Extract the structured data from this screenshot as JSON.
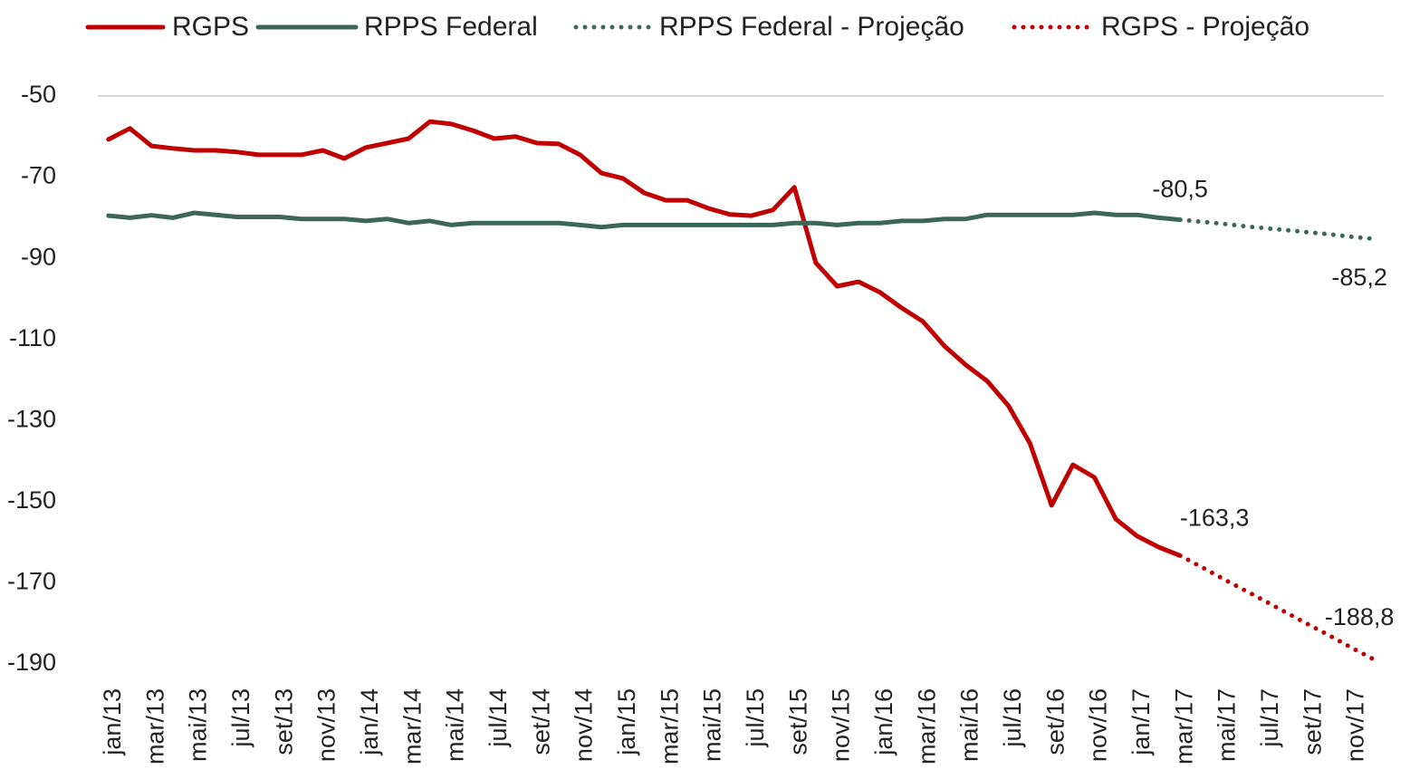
{
  "chart_data": {
    "type": "line",
    "categories": [
      "jan/13",
      null,
      "mar/13",
      null,
      "mai/13",
      null,
      "jul/13",
      null,
      "set/13",
      null,
      "nov/13",
      null,
      "jan/14",
      null,
      "mar/14",
      null,
      "mai/14",
      null,
      "jul/14",
      null,
      "set/14",
      null,
      "nov/14",
      null,
      "jan/15",
      null,
      "mar/15",
      null,
      "mai/15",
      null,
      "jul/15",
      null,
      "set/15",
      null,
      "nov/15",
      null,
      "jan/16",
      null,
      "mar/16",
      null,
      "mai/16",
      null,
      "jul/16",
      null,
      "set/16",
      null,
      "nov/16",
      null,
      "jan/17",
      null,
      "mar/17",
      null,
      "mai/17",
      null,
      "jul/17",
      null,
      "set/17",
      null,
      "nov/17",
      null
    ],
    "series": [
      {
        "name": "RGPS",
        "color": "#c00000",
        "style": "solid",
        "values": [
          -60.7,
          -58.0,
          -62.3,
          -62.9,
          -63.4,
          -63.4,
          -63.8,
          -64.5,
          -64.5,
          -64.5,
          -63.4,
          -65.4,
          -62.7,
          -61.6,
          -60.5,
          -56.3,
          -56.9,
          -58.5,
          -60.5,
          -60.0,
          -61.6,
          -61.8,
          -64.5,
          -69.0,
          -70.3,
          -73.9,
          -75.7,
          -75.7,
          -77.7,
          -79.2,
          -79.5,
          -78.1,
          -72.5,
          -91.1,
          -96.9,
          -95.8,
          -98.4,
          -102.2,
          -105.6,
          -111.6,
          -116.3,
          -120.3,
          -126.4,
          -135.7,
          -150.9,
          -140.9,
          -144.0,
          -154.3,
          -158.5,
          -161.2,
          -163.3,
          null,
          null,
          null,
          null,
          null,
          null,
          null,
          null,
          null
        ],
        "value_labels": [
          null,
          null,
          null,
          null,
          null,
          null,
          null,
          null,
          null,
          null,
          null,
          null,
          null,
          null,
          null,
          null,
          null,
          null,
          null,
          null,
          null,
          null,
          null,
          null,
          null,
          null,
          null,
          null,
          null,
          null,
          null,
          null,
          null,
          null,
          null,
          null,
          null,
          null,
          null,
          null,
          null,
          null,
          null,
          null,
          null,
          null,
          null,
          null,
          null,
          null,
          "-163,3",
          null,
          null,
          null,
          null,
          null,
          null,
          null,
          null,
          null
        ]
      },
      {
        "name": "RPPS Federal",
        "color": "#3b6659",
        "style": "solid",
        "values": [
          -79.5,
          -80.0,
          -79.4,
          -80.0,
          -78.8,
          -79.3,
          -79.8,
          -79.8,
          -79.8,
          -80.3,
          -80.3,
          -80.3,
          -80.8,
          -80.3,
          -81.3,
          -80.8,
          -81.8,
          -81.3,
          -81.3,
          -81.3,
          -81.3,
          -81.3,
          -81.8,
          -82.3,
          -81.8,
          -81.8,
          -81.8,
          -81.8,
          -81.8,
          -81.8,
          -81.8,
          -81.8,
          -81.3,
          -81.3,
          -81.8,
          -81.3,
          -81.3,
          -80.8,
          -80.8,
          -80.3,
          -80.3,
          -79.3,
          -79.3,
          -79.3,
          -79.3,
          -79.3,
          -78.8,
          -79.3,
          -79.3,
          -80.0,
          -80.5,
          null,
          null,
          null,
          null,
          null,
          null,
          null,
          null,
          null
        ],
        "value_labels": [
          null,
          null,
          null,
          null,
          null,
          null,
          null,
          null,
          null,
          null,
          null,
          null,
          null,
          null,
          null,
          null,
          null,
          null,
          null,
          null,
          null,
          null,
          null,
          null,
          null,
          null,
          null,
          null,
          null,
          null,
          null,
          null,
          null,
          null,
          null,
          null,
          null,
          null,
          null,
          null,
          null,
          null,
          null,
          null,
          null,
          null,
          null,
          null,
          null,
          null,
          "-80,5",
          null,
          null,
          null,
          null,
          null,
          null,
          null,
          null,
          null
        ]
      },
      {
        "name": "RPPS Federal - Projeção",
        "color": "#3b6659",
        "style": "dotted",
        "values": [
          null,
          null,
          null,
          null,
          null,
          null,
          null,
          null,
          null,
          null,
          null,
          null,
          null,
          null,
          null,
          null,
          null,
          null,
          null,
          null,
          null,
          null,
          null,
          null,
          null,
          null,
          null,
          null,
          null,
          null,
          null,
          null,
          null,
          null,
          null,
          null,
          null,
          null,
          null,
          null,
          null,
          null,
          null,
          null,
          null,
          null,
          null,
          null,
          null,
          null,
          -80.5,
          -81.0,
          -81.5,
          -82.1,
          -82.6,
          -83.1,
          -83.6,
          -84.1,
          -84.7,
          -85.2
        ],
        "value_labels": [
          null,
          null,
          null,
          null,
          null,
          null,
          null,
          null,
          null,
          null,
          null,
          null,
          null,
          null,
          null,
          null,
          null,
          null,
          null,
          null,
          null,
          null,
          null,
          null,
          null,
          null,
          null,
          null,
          null,
          null,
          null,
          null,
          null,
          null,
          null,
          null,
          null,
          null,
          null,
          null,
          null,
          null,
          null,
          null,
          null,
          null,
          null,
          null,
          null,
          null,
          null,
          null,
          null,
          null,
          null,
          null,
          null,
          null,
          null,
          "-85,2"
        ]
      },
      {
        "name": "RGPS - Projeção",
        "color": "#c00000",
        "style": "dotted",
        "values": [
          null,
          null,
          null,
          null,
          null,
          null,
          null,
          null,
          null,
          null,
          null,
          null,
          null,
          null,
          null,
          null,
          null,
          null,
          null,
          null,
          null,
          null,
          null,
          null,
          null,
          null,
          null,
          null,
          null,
          null,
          null,
          null,
          null,
          null,
          null,
          null,
          null,
          null,
          null,
          null,
          null,
          null,
          null,
          null,
          null,
          null,
          null,
          null,
          null,
          null,
          -163.3,
          -166.1,
          -169.0,
          -171.8,
          -174.6,
          -177.5,
          -180.3,
          -183.1,
          -186.0,
          -188.8
        ],
        "value_labels": [
          null,
          null,
          null,
          null,
          null,
          null,
          null,
          null,
          null,
          null,
          null,
          null,
          null,
          null,
          null,
          null,
          null,
          null,
          null,
          null,
          null,
          null,
          null,
          null,
          null,
          null,
          null,
          null,
          null,
          null,
          null,
          null,
          null,
          null,
          null,
          null,
          null,
          null,
          null,
          null,
          null,
          null,
          null,
          null,
          null,
          null,
          null,
          null,
          null,
          null,
          null,
          null,
          null,
          null,
          null,
          null,
          null,
          null,
          null,
          "-188,8"
        ]
      }
    ],
    "ylim": [
      -190,
      -50
    ],
    "yticks": [
      -50,
      -70,
      -90,
      -110,
      -130,
      -150,
      -170,
      -190
    ],
    "grid": false,
    "legend": "top"
  }
}
